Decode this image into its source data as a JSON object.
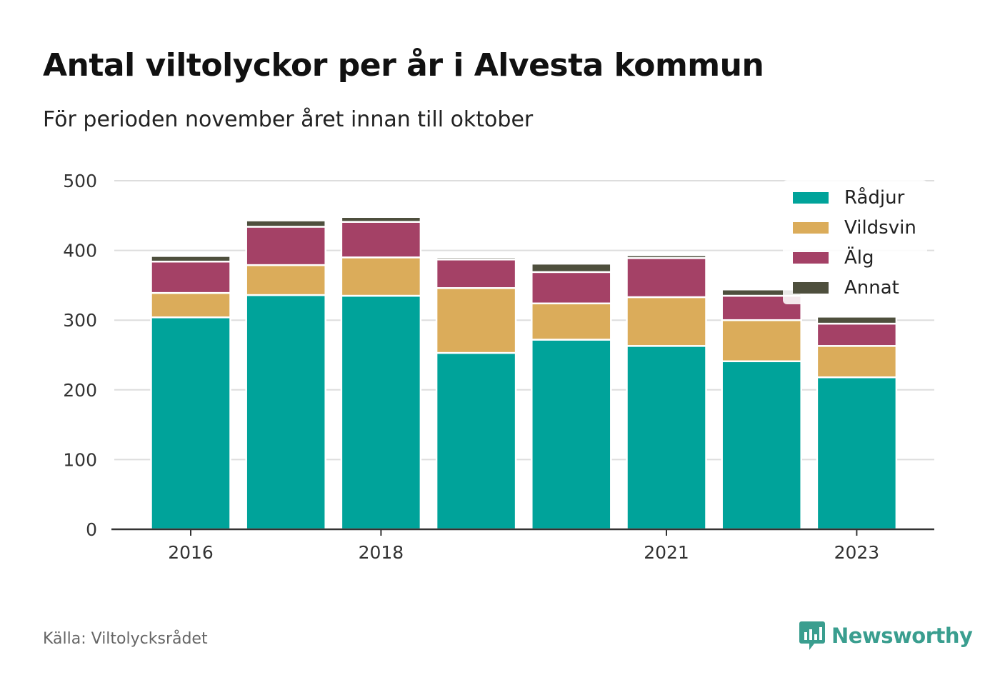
{
  "title": "Antal viltolyckor per år i Alvesta kommun",
  "subtitle": "För perioden november året innan till oktober",
  "source": "Källa: Viltolycksrådet",
  "brand": {
    "name": "Newsworthy",
    "icon": "newsworthy-logo-icon",
    "color": "#3a9e8f"
  },
  "chart_data": {
    "type": "bar",
    "stacked": true,
    "x": [
      2016,
      2017,
      2018,
      2019,
      2020,
      2021,
      2022,
      2023
    ],
    "x_tick_labels": [
      "2016",
      "2018",
      "2021",
      "2023"
    ],
    "x_tick_values": [
      2016,
      2018,
      2021,
      2023
    ],
    "ylim": [
      0,
      500
    ],
    "y_ticks": [
      0,
      100,
      200,
      300,
      400,
      500
    ],
    "grid": true,
    "legend_position": "top-right",
    "series": [
      {
        "name": "Rådjur",
        "color": "#00a39a",
        "values": [
          304,
          336,
          335,
          253,
          272,
          263,
          241,
          218
        ]
      },
      {
        "name": "Vildsvin",
        "color": "#dbac5a",
        "values": [
          35,
          43,
          55,
          93,
          52,
          70,
          59,
          45
        ]
      },
      {
        "name": "Älg",
        "color": "#a44166",
        "values": [
          45,
          55,
          51,
          41,
          45,
          56,
          35,
          32
        ]
      },
      {
        "name": "Annat",
        "color": "#4e4f3d",
        "values": [
          8,
          9,
          7,
          3,
          12,
          4,
          9,
          10
        ]
      }
    ]
  }
}
